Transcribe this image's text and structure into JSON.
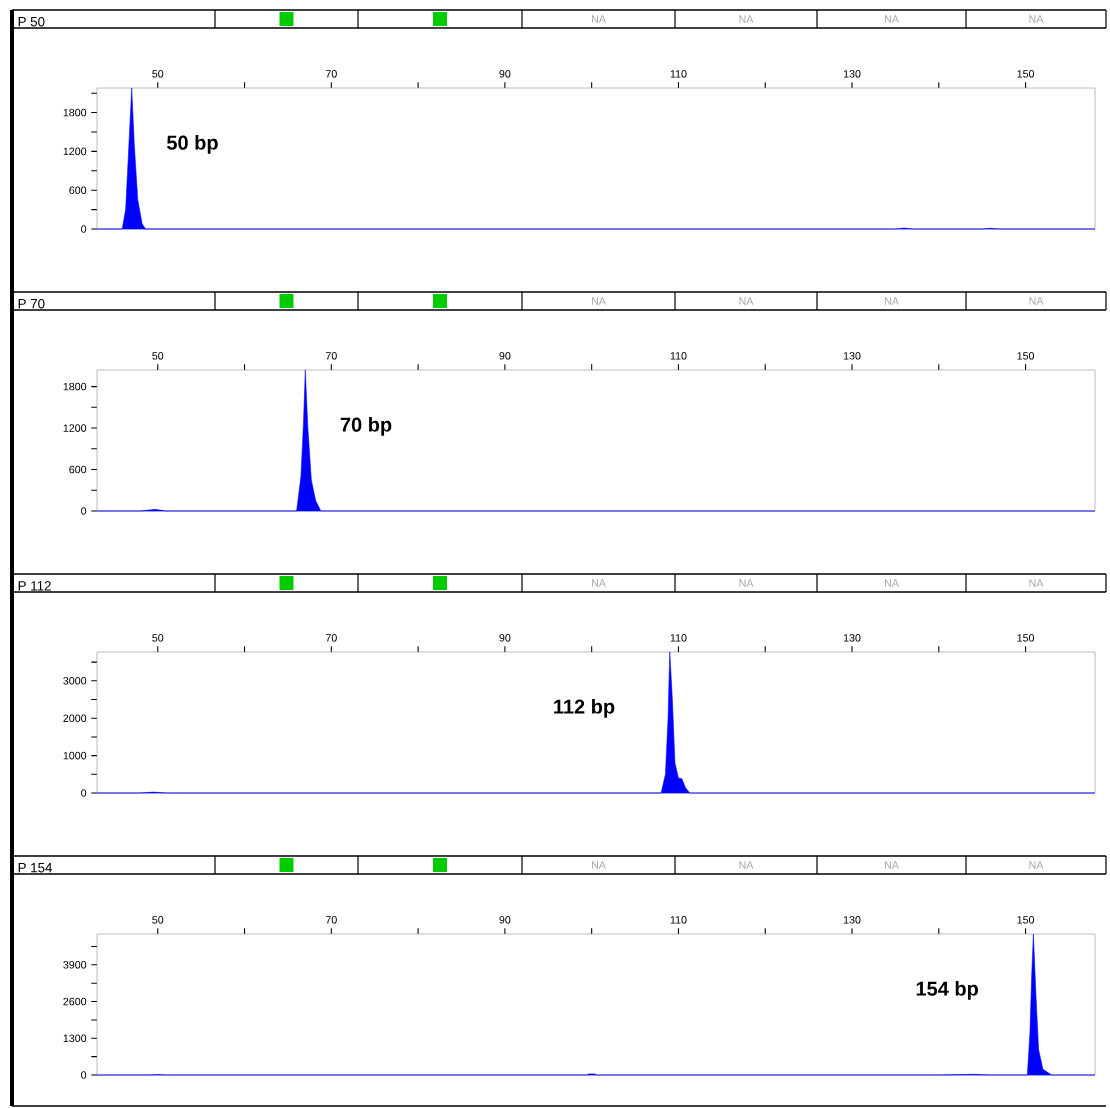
{
  "chart_data": [
    {
      "type": "area",
      "title": "P 50",
      "color": "#0000ff",
      "x": [
        43,
        45.9,
        46.3,
        46.6,
        47.0,
        47.3,
        47.7,
        48.2,
        48.6,
        80,
        120,
        135,
        136,
        137,
        145,
        146,
        147,
        158
      ],
      "values": [
        0,
        0,
        300,
        1100,
        2180,
        1300,
        450,
        80,
        0,
        0,
        0,
        0,
        15,
        0,
        0,
        12,
        0,
        0
      ],
      "xlim": [
        43,
        158
      ],
      "xticks": [
        50,
        {
          "value": 60,
          "label": null
        },
        70,
        {
          "value": 80,
          "label": null
        },
        90,
        {
          "value": 100,
          "label": null
        },
        110,
        {
          "value": 120,
          "label": null
        },
        130,
        {
          "value": 140,
          "label": null
        },
        150
      ],
      "ylim": [
        0,
        2180
      ],
      "yticks": [
        0,
        {
          "value": 300,
          "label": null
        },
        600,
        {
          "value": 900,
          "label": null
        },
        1200,
        {
          "value": 1500,
          "label": null
        },
        1800,
        {
          "value": 2100,
          "label": null
        }
      ],
      "annotations": [
        "NA",
        "NA",
        "NA",
        "NA",
        "50 bp"
      ]
    },
    {
      "type": "area",
      "title": "P 70",
      "color": "#0000ff",
      "x": [
        43,
        48,
        49.7,
        51,
        66,
        66.5,
        66.8,
        67.0,
        67.3,
        67.7,
        68.2,
        68.8,
        90,
        130,
        158
      ],
      "values": [
        0,
        0,
        25,
        0,
        0,
        500,
        1300,
        2040,
        1200,
        450,
        150,
        0,
        0,
        0,
        0
      ],
      "xlim": [
        43,
        158
      ],
      "xticks": [
        50,
        {
          "value": 60,
          "label": null
        },
        70,
        {
          "value": 80,
          "label": null
        },
        90,
        {
          "value": 100,
          "label": null
        },
        110,
        {
          "value": 120,
          "label": null
        },
        130,
        {
          "value": 140,
          "label": null
        },
        150
      ],
      "ylim": [
        0,
        2040
      ],
      "yticks": [
        0,
        {
          "value": 300,
          "label": null
        },
        600,
        {
          "value": 900,
          "label": null
        },
        1200,
        {
          "value": 1500,
          "label": null
        },
        1800
      ],
      "annotations": [
        "NA",
        "NA",
        "NA",
        "NA",
        "70 bp"
      ]
    },
    {
      "type": "area",
      "title": "P 112",
      "color": "#0000ff",
      "x": [
        43,
        48,
        49.5,
        51,
        108,
        108.5,
        108.8,
        109.0,
        109.3,
        109.6,
        110.0,
        110.4,
        110.8,
        111.3,
        130,
        158
      ],
      "values": [
        0,
        0,
        25,
        0,
        0,
        500,
        2000,
        3770,
        2500,
        800,
        400,
        380,
        150,
        0,
        0,
        0
      ],
      "xlim": [
        43,
        158
      ],
      "xticks": [
        50,
        {
          "value": 60,
          "label": null
        },
        70,
        {
          "value": 80,
          "label": null
        },
        90,
        {
          "value": 100,
          "label": null
        },
        110,
        {
          "value": 120,
          "label": null
        },
        130,
        {
          "value": 140,
          "label": null
        },
        150
      ],
      "ylim": [
        0,
        3770
      ],
      "yticks": [
        0,
        {
          "value": 500,
          "label": null
        },
        1000,
        {
          "value": 1500,
          "label": null
        },
        2000,
        {
          "value": 2500,
          "label": null
        },
        3000,
        {
          "value": 3500,
          "label": null
        }
      ],
      "annotations": [
        "NA",
        "NA",
        "NA",
        "NA",
        "112 bp"
      ]
    },
    {
      "type": "area",
      "title": "P 154",
      "color": "#0000ff",
      "x": [
        43,
        49,
        50,
        51,
        99.5,
        99.6,
        100.4,
        100.5,
        140,
        144,
        146,
        150.2,
        150.5,
        150.7,
        150.9,
        151.2,
        151.5,
        152,
        153,
        158
      ],
      "values": [
        0,
        0,
        20,
        0,
        0,
        40,
        40,
        0,
        0,
        25,
        0,
        0,
        1500,
        3500,
        4990,
        2800,
        900,
        200,
        0,
        0
      ],
      "xlim": [
        43,
        158
      ],
      "xticks": [
        50,
        {
          "value": 60,
          "label": null
        },
        70,
        {
          "value": 80,
          "label": null
        },
        90,
        {
          "value": 100,
          "label": null
        },
        110,
        {
          "value": 120,
          "label": null
        },
        130,
        {
          "value": 140,
          "label": null
        },
        150
      ],
      "ylim": [
        0,
        4990
      ],
      "yticks": [
        0,
        {
          "value": 650,
          "label": null
        },
        1300,
        {
          "value": 1950,
          "label": null
        },
        2600,
        {
          "value": 3250,
          "label": null
        },
        3900,
        {
          "value": 4550,
          "label": null
        }
      ],
      "annotations": [
        "NA",
        "NA",
        "NA",
        "NA",
        "154 bp"
      ]
    }
  ]
}
